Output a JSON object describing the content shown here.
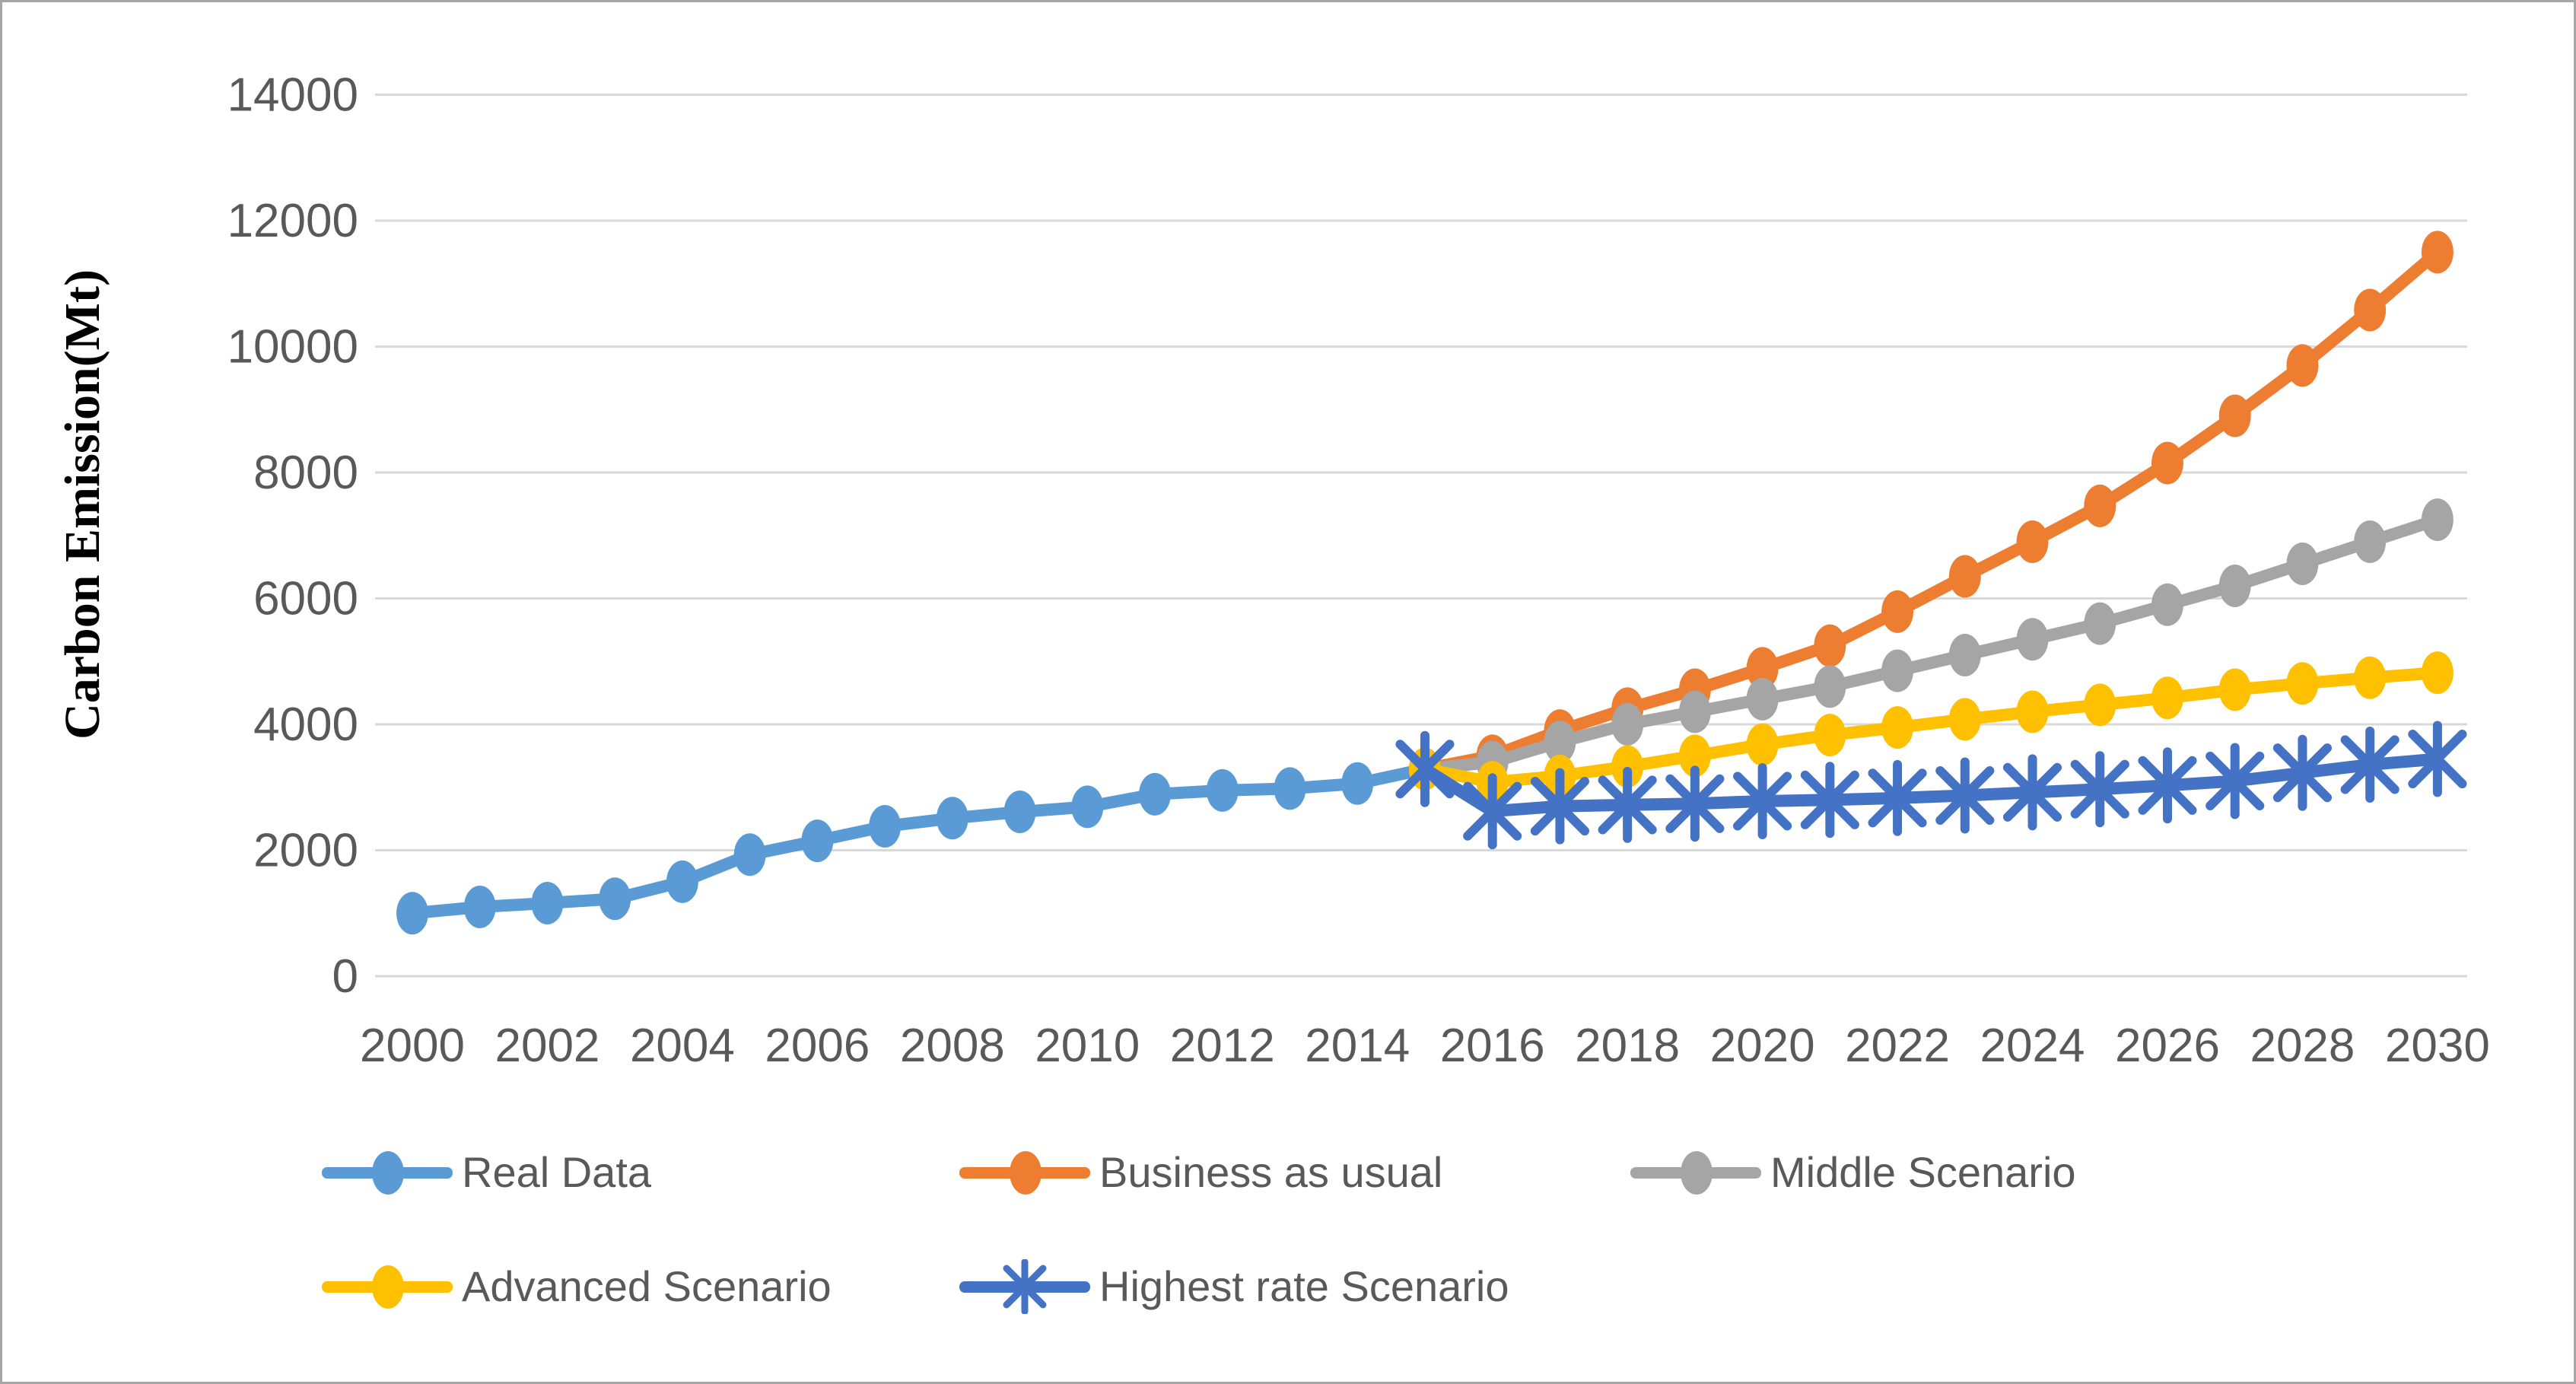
{
  "figure": {
    "background": "#ffffff",
    "border_color": "#a6a6a6",
    "gridline_color": "#d9d9d9",
    "tick_label_color": "#595959",
    "legend_text_color": "#595959"
  },
  "chart_data": {
    "type": "line",
    "title": "",
    "xlabel": "",
    "ylabel": "Carbon Emission(Mt)",
    "ylim": [
      0,
      14000
    ],
    "xlim": [
      2000,
      2030
    ],
    "grid": true,
    "legend_position": "bottom",
    "y_ticks": [
      0,
      2000,
      4000,
      6000,
      8000,
      10000,
      12000,
      14000
    ],
    "x_tick_labels": [
      "2000",
      "2002",
      "2004",
      "2006",
      "2008",
      "2010",
      "2012",
      "2014",
      "2016",
      "2018",
      "2020",
      "2022",
      "2024",
      "2026",
      "2028",
      "2030"
    ],
    "series": [
      {
        "name": "Real Data",
        "color": "#5B9BD5",
        "marker": "ellipse",
        "x": [
          2000,
          2001,
          2002,
          2003,
          2004,
          2005,
          2006,
          2007,
          2008,
          2009,
          2010,
          2011,
          2012,
          2013,
          2014,
          2015
        ],
        "values": [
          1000,
          1100,
          1160,
          1230,
          1500,
          1930,
          2150,
          2380,
          2510,
          2610,
          2690,
          2890,
          2950,
          2980,
          3060,
          3290
        ]
      },
      {
        "name": "Business as usual",
        "color": "#ED7D31",
        "marker": "ellipse",
        "x": [
          2015,
          2016,
          2017,
          2018,
          2019,
          2020,
          2021,
          2022,
          2023,
          2024,
          2025,
          2026,
          2027,
          2028,
          2029,
          2030
        ],
        "values": [
          3290,
          3500,
          3900,
          4250,
          4550,
          4890,
          5250,
          5790,
          6350,
          6900,
          7470,
          8150,
          8900,
          9700,
          10580,
          11500
        ]
      },
      {
        "name": "Middle Scenario",
        "color": "#A5A5A5",
        "marker": "ellipse",
        "x": [
          2015,
          2016,
          2017,
          2018,
          2019,
          2020,
          2021,
          2022,
          2023,
          2024,
          2025,
          2026,
          2027,
          2028,
          2029,
          2030
        ],
        "values": [
          3290,
          3400,
          3720,
          4000,
          4200,
          4400,
          4600,
          4850,
          5100,
          5350,
          5600,
          5900,
          6200,
          6550,
          6900,
          7250
        ]
      },
      {
        "name": "Advanced Scenario",
        "color": "#FFC000",
        "marker": "ellipse",
        "x": [
          2015,
          2016,
          2017,
          2018,
          2019,
          2020,
          2021,
          2022,
          2023,
          2024,
          2025,
          2026,
          2027,
          2028,
          2029,
          2030
        ],
        "values": [
          3290,
          3080,
          3180,
          3330,
          3500,
          3680,
          3830,
          3950,
          4080,
          4200,
          4310,
          4420,
          4550,
          4650,
          4740,
          4820
        ]
      },
      {
        "name": "Highest rate Scenario",
        "color": "#4472C4",
        "marker": "star",
        "x": [
          2015,
          2016,
          2017,
          2018,
          2019,
          2020,
          2021,
          2022,
          2023,
          2024,
          2025,
          2026,
          2027,
          2028,
          2029,
          2030
        ],
        "values": [
          3290,
          2620,
          2700,
          2720,
          2740,
          2780,
          2800,
          2830,
          2870,
          2920,
          2970,
          3030,
          3100,
          3230,
          3360,
          3450
        ]
      }
    ]
  }
}
